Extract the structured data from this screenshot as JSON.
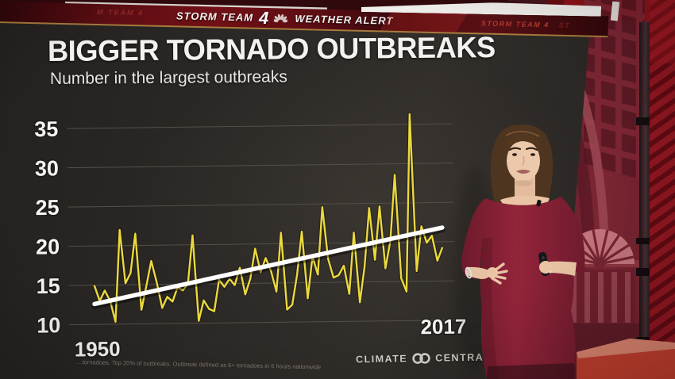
{
  "broadcast": {
    "top_banner": {
      "station": "STORM TEAM",
      "channel_number": "4",
      "peacock_icon": "nbc-peacock",
      "alert_text": "WEATHER ALERT",
      "faded_left_text": "M TEAM 4",
      "right_ticker": "STORM TEAM 4",
      "right_ticker_partial": "ST",
      "accent_gold": "#a87a3c",
      "banner_red": "#5c0d13"
    },
    "attribution": {
      "brand_left": "CLIMATE",
      "brand_right": "CENTRAL",
      "logo_icon": "climate-central-rings"
    },
    "scene": {
      "presenter": "weather presenter in dark red dress holding clicker remote",
      "backdrop": "red-tinted station-hall backdrop with arch, fanlight window and red curtain"
    }
  },
  "chart_data": {
    "type": "line",
    "title": "BIGGER TORNADO OUTBREAKS",
    "subtitle": "Number in the largest outbreaks",
    "x_start": 1950,
    "x_end": 2017,
    "x_step": 1,
    "xtick_labels": [
      "1950",
      "2017"
    ],
    "yticks": [
      10,
      15,
      20,
      25,
      30,
      35
    ],
    "ylim": [
      9,
      37
    ],
    "grid": "horizontal",
    "legend": "none",
    "series": [
      {
        "name": "Number in the largest outbreaks",
        "type": "line",
        "color": "#ead93e",
        "values": [
          15.0,
          13.0,
          14.3,
          13.0,
          10.3,
          22.0,
          15.2,
          16.5,
          21.5,
          11.8,
          14.8,
          18.0,
          15.3,
          12.0,
          13.4,
          12.8,
          14.6,
          14.2,
          15.0,
          21.2,
          10.3,
          12.9,
          11.8,
          11.5,
          15.5,
          14.6,
          15.6,
          14.8,
          17.0,
          13.6,
          15.6,
          19.4,
          16.4,
          18.2,
          16.5,
          13.9,
          21.4,
          11.6,
          12.2,
          16.0,
          21.5,
          13.0,
          18.3,
          16.0,
          24.6,
          18.0,
          15.6,
          15.9,
          17.1,
          13.5,
          21.3,
          12.4,
          17.0,
          24.4,
          17.8,
          24.6,
          16.7,
          20.2,
          28.6,
          15.4,
          13.7,
          36.3,
          16.3,
          22.0,
          19.9,
          20.8,
          17.6,
          19.3
        ]
      },
      {
        "name": "Trend",
        "type": "trend-line",
        "color": "#ffffff",
        "start": {
          "x": 1950,
          "y": 12.6
        },
        "end": {
          "x": 2017,
          "y": 21.8
        }
      }
    ],
    "source_note": "…tornadoes. Top 20% of outbreaks. Outbreak defined as 6+ tornadoes in 6 hours nationwide"
  },
  "colors": {
    "line_yellow": "#ead93e",
    "trend_white": "#ffffff",
    "board_bg": "#2b2927",
    "studio_red": "#7c2633",
    "curtain_red": "#8e1620",
    "floor_red": "#bf3e2d",
    "dress_red": "#8c2236"
  }
}
